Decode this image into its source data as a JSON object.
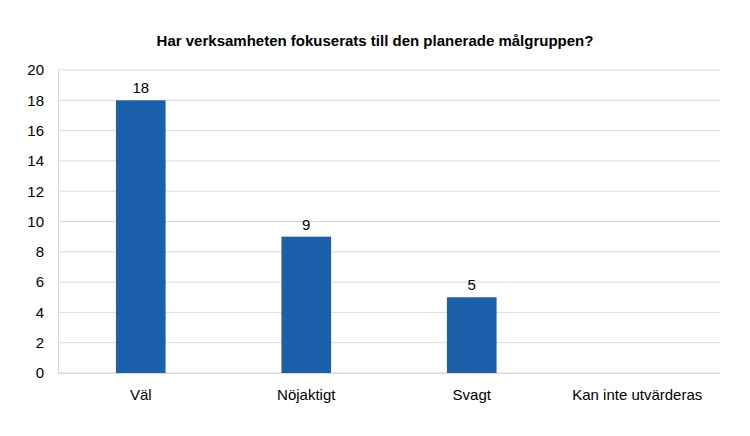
{
  "chart_data": {
    "type": "bar",
    "title": "Har verksamheten fokuserats till den planerade målgruppen?",
    "categories": [
      "Väl",
      "Nöjaktigt",
      "Svagt",
      "Kan inte utvärderas"
    ],
    "values": [
      18,
      9,
      5,
      null
    ],
    "color": "#1c60ab",
    "ylim": [
      0,
      20
    ],
    "yticks": [
      0,
      2,
      4,
      6,
      8,
      10,
      12,
      14,
      16,
      18,
      20
    ],
    "grid": true,
    "data_labels": true
  }
}
